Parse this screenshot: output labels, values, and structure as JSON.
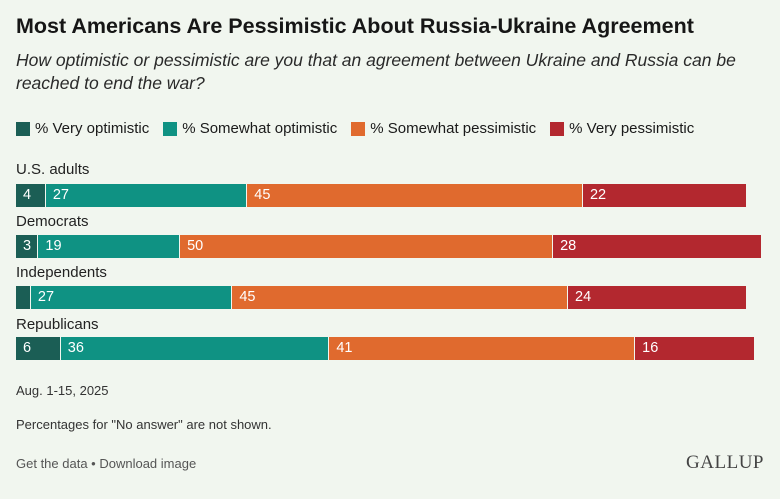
{
  "header": {
    "title": "Most Americans Are Pessimistic About Russia-Ukraine Agreement",
    "subtitle": "How optimistic or pessimistic are you that an agreement between Ukraine and Russia can be reached to end the war?"
  },
  "chart_data": {
    "type": "bar",
    "orientation": "horizontal-stacked",
    "categories": [
      "U.S. adults",
      "Democrats",
      "Independents",
      "Republicans"
    ],
    "series": [
      {
        "name": "% Very optimistic",
        "color": "#1b5e55",
        "values": [
          4,
          3,
          2,
          6
        ],
        "labels": [
          "4",
          "3",
          "",
          "6"
        ]
      },
      {
        "name": "% Somewhat optimistic",
        "color": "#0f9283",
        "values": [
          27,
          19,
          27,
          36
        ],
        "labels": [
          "27",
          "19",
          "27",
          "36"
        ]
      },
      {
        "name": "% Somewhat pessimistic",
        "color": "#e06a2e",
        "values": [
          45,
          50,
          45,
          41
        ],
        "labels": [
          "45",
          "50",
          "45",
          "41"
        ]
      },
      {
        "name": "% Very pessimistic",
        "color": "#b3282f",
        "values": [
          22,
          28,
          24,
          16
        ],
        "labels": [
          "22",
          "28",
          "24",
          "16"
        ]
      }
    ],
    "xlim": [
      0,
      100
    ]
  },
  "notes": {
    "date": "Aug. 1-15, 2025",
    "disclaimer": "Percentages for \"No answer\" are not shown."
  },
  "footer": {
    "get_data": "Get the data",
    "separator": " • ",
    "download": "Download image",
    "logo": "GALLUP"
  }
}
